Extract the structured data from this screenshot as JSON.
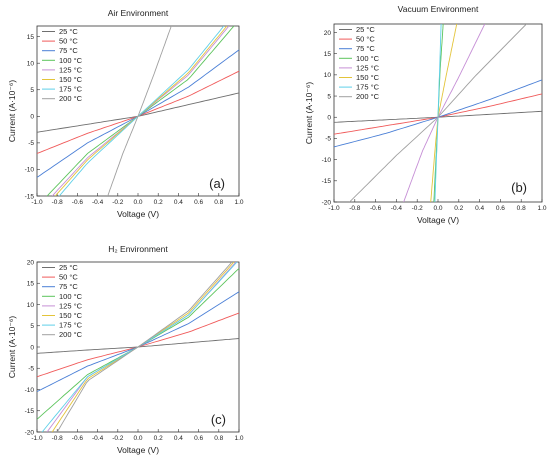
{
  "chart_data": [
    {
      "type": "line",
      "panel": "(a)",
      "title": "Air Environment",
      "xlabel": "Voltage (V)",
      "ylabel": "Current (A·10⁻⁶)",
      "xlim": [
        -1.0,
        1.0
      ],
      "ylim": [
        -15,
        17
      ],
      "xticks": [
        "-1.0",
        "-0.8",
        "-0.6",
        "-0.4",
        "-0.2",
        "0.0",
        "0.2",
        "0.4",
        "0.6",
        "0.8",
        "1.0"
      ],
      "yticks": [
        -15,
        -10,
        -5,
        0,
        5,
        10,
        15
      ],
      "legend_position": "top-left",
      "series": [
        {
          "name": "25 °C",
          "color": "#6f6f6f",
          "x": [
            -1.0,
            -0.5,
            0,
            0.5,
            1.0
          ],
          "y": [
            -3.0,
            -1.5,
            0,
            2.2,
            4.4
          ]
        },
        {
          "name": "50 °C",
          "color": "#f05a5a",
          "x": [
            -1.0,
            -0.5,
            0,
            0.5,
            1.0
          ],
          "y": [
            -7.0,
            -3.2,
            0,
            3.8,
            8.5
          ]
        },
        {
          "name": "75 °C",
          "color": "#4a7fd6",
          "x": [
            -1.0,
            -0.5,
            0,
            0.5,
            1.0
          ],
          "y": [
            -11.5,
            -5.0,
            0,
            5.5,
            12.5
          ]
        },
        {
          "name": "100 °C",
          "color": "#5cc45c",
          "x": [
            -0.9,
            -0.5,
            0,
            0.5,
            0.95
          ],
          "y": [
            -15.0,
            -7.0,
            0,
            7.0,
            17.0
          ]
        },
        {
          "name": "125 °C",
          "color": "#c68fd6",
          "x": [
            -0.85,
            -0.5,
            0,
            0.5,
            0.9
          ],
          "y": [
            -15.0,
            -7.8,
            0,
            7.8,
            17.0
          ]
        },
        {
          "name": "150 °C",
          "color": "#e3c43a",
          "x": [
            -0.82,
            -0.5,
            0,
            0.5,
            0.88
          ],
          "y": [
            -15.0,
            -8.2,
            0,
            8.2,
            17.0
          ]
        },
        {
          "name": "175 °C",
          "color": "#5fd0e8",
          "x": [
            -0.78,
            -0.5,
            0,
            0.5,
            0.85
          ],
          "y": [
            -15.0,
            -8.8,
            0,
            8.8,
            17.0
          ]
        },
        {
          "name": "200 °C",
          "color": "#a0a0a0",
          "x": [
            -0.3,
            -0.15,
            0,
            0.15,
            0.33
          ],
          "y": [
            -15.0,
            -7.0,
            0,
            7.5,
            17.0
          ]
        }
      ]
    },
    {
      "type": "line",
      "panel": "(b)",
      "title": "Vacuum Environment",
      "xlabel": "Voltage (V)",
      "ylabel": "Current (A·10⁻⁶)",
      "xlim": [
        -1.0,
        1.0
      ],
      "ylim": [
        -20,
        22
      ],
      "xticks": [
        "-1.0",
        "-0.8",
        "-0.6",
        "-0.4",
        "-0.2",
        "0.0",
        "0.2",
        "0.4",
        "0.6",
        "0.8",
        "1.0"
      ],
      "yticks": [
        -20,
        -15,
        -10,
        -5,
        0,
        5,
        10,
        15,
        20
      ],
      "legend_position": "top-left",
      "series": [
        {
          "name": "25 °C",
          "color": "#6f6f6f",
          "x": [
            -1.0,
            -0.5,
            0,
            0.5,
            1.0
          ],
          "y": [
            -1.2,
            -0.6,
            0,
            0.7,
            1.4
          ]
        },
        {
          "name": "50 °C",
          "color": "#f05a5a",
          "x": [
            -1.0,
            -0.5,
            0,
            0.5,
            1.0
          ],
          "y": [
            -4.0,
            -2.0,
            0,
            2.6,
            5.5
          ]
        },
        {
          "name": "75 °C",
          "color": "#4a7fd6",
          "x": [
            -1.0,
            -0.5,
            0,
            0.5,
            1.0
          ],
          "y": [
            -7.0,
            -3.8,
            0,
            4.2,
            8.8
          ]
        },
        {
          "name": "100 °C",
          "color": "#5cc45c",
          "x": [
            -0.04,
            -0.02,
            0,
            0.02,
            0.05
          ],
          "y": [
            -20.0,
            -10.0,
            0,
            11.0,
            22.0
          ]
        },
        {
          "name": "125 °C",
          "color": "#c68fd6",
          "x": [
            -0.33,
            -0.15,
            0,
            0.2,
            0.45
          ],
          "y": [
            -20.0,
            -8.0,
            0,
            9.5,
            22.0
          ]
        },
        {
          "name": "150 °C",
          "color": "#e3c43a",
          "x": [
            -0.07,
            -0.03,
            0,
            0.08,
            0.18
          ],
          "y": [
            -20.0,
            -8.0,
            0,
            10.0,
            22.0
          ]
        },
        {
          "name": "175 °C",
          "color": "#5fd0e8",
          "x": [
            -0.03,
            -0.015,
            0,
            0.015,
            0.03
          ],
          "y": [
            -20.0,
            -10.0,
            0,
            11.0,
            22.0
          ]
        },
        {
          "name": "200 °C",
          "color": "#a0a0a0",
          "x": [
            -0.85,
            -0.4,
            0,
            0.35,
            0.85
          ],
          "y": [
            -20.0,
            -9.0,
            0,
            9.5,
            22.0
          ]
        }
      ]
    },
    {
      "type": "line",
      "panel": "(c)",
      "title": "H₂ Environment",
      "xlabel": "Voltage (V)",
      "ylabel": "Current (A·10⁻⁶)",
      "xlim": [
        -1.0,
        1.0
      ],
      "ylim": [
        -20,
        20
      ],
      "xticks": [
        "-1.0",
        "-0.8",
        "-0.6",
        "-0.4",
        "-0.2",
        "0.0",
        "0.2",
        "0.4",
        "0.6",
        "0.8",
        "1.0"
      ],
      "yticks": [
        -20,
        -15,
        -10,
        -5,
        0,
        5,
        10,
        15,
        20
      ],
      "legend_position": "top-left",
      "series": [
        {
          "name": "25 °C",
          "color": "#6f6f6f",
          "x": [
            -1.0,
            -0.5,
            0,
            0.5,
            1.0
          ],
          "y": [
            -1.5,
            -0.7,
            0,
            1.0,
            2.0
          ]
        },
        {
          "name": "50 °C",
          "color": "#f05a5a",
          "x": [
            -1.0,
            -0.5,
            0,
            0.5,
            1.0
          ],
          "y": [
            -7.0,
            -3.0,
            0,
            3.5,
            8.0
          ]
        },
        {
          "name": "75 °C",
          "color": "#4a7fd6",
          "x": [
            -1.0,
            -0.5,
            0,
            0.5,
            1.0
          ],
          "y": [
            -10.5,
            -4.5,
            0,
            5.5,
            13.0
          ]
        },
        {
          "name": "100 °C",
          "color": "#5cc45c",
          "x": [
            -1.0,
            -0.5,
            0,
            0.5,
            1.0
          ],
          "y": [
            -17.0,
            -6.5,
            0,
            7.0,
            18.5
          ]
        },
        {
          "name": "125 °C",
          "color": "#c68fd6",
          "x": [
            -0.9,
            -0.5,
            0,
            0.5,
            0.97
          ],
          "y": [
            -20.0,
            -7.0,
            0,
            7.5,
            20.0
          ]
        },
        {
          "name": "150 °C",
          "color": "#e3c43a",
          "x": [
            -0.85,
            -0.5,
            0,
            0.5,
            0.95
          ],
          "y": [
            -20.0,
            -7.5,
            0,
            8.0,
            20.0
          ]
        },
        {
          "name": "175 °C",
          "color": "#5fd0e8",
          "x": [
            -0.95,
            -0.5,
            0,
            0.5,
            0.98
          ],
          "y": [
            -20.0,
            -7.0,
            0,
            7.5,
            20.0
          ]
        },
        {
          "name": "200 °C",
          "color": "#a0a0a0",
          "x": [
            -0.8,
            -0.5,
            0,
            0.5,
            0.93
          ],
          "y": [
            -20.0,
            -8.0,
            0,
            8.5,
            20.0
          ]
        }
      ]
    }
  ]
}
